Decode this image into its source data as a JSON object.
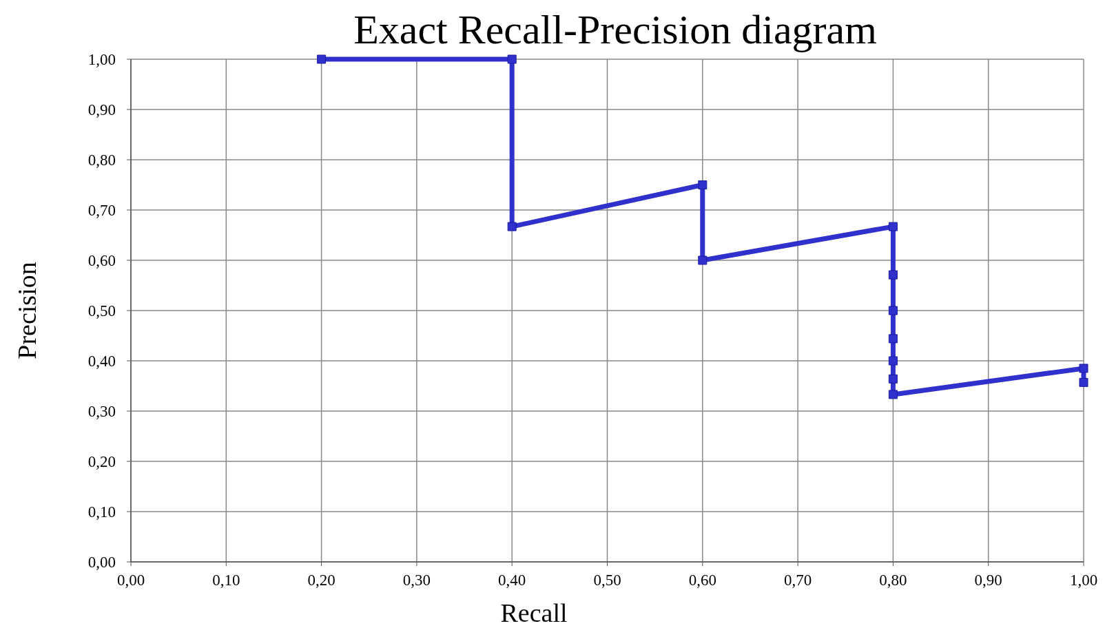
{
  "chart_data": {
    "type": "line",
    "title": "Exact Recall-Precision diagram",
    "xlabel": "Recall",
    "ylabel": "Precision",
    "x": [
      0.2,
      0.4,
      0.4,
      0.6,
      0.6,
      0.8,
      0.8,
      0.8,
      0.8,
      0.8,
      0.8,
      0.8,
      1.0,
      1.0
    ],
    "series": [
      {
        "color": "#3030cc",
        "values": [
          1.0,
          1.0,
          0.667,
          0.75,
          0.6,
          0.667,
          0.571,
          0.5,
          0.444,
          0.4,
          0.364,
          0.333,
          0.385,
          0.357
        ]
      }
    ],
    "xlim": [
      0,
      1
    ],
    "ylim": [
      0,
      1
    ],
    "xticks": [
      {
        "value": 0,
        "label": "0,00"
      },
      {
        "value": 0.1,
        "label": "0,10"
      },
      {
        "value": 0.2,
        "label": "0,20"
      },
      {
        "value": 0.3,
        "label": "0,30"
      },
      {
        "value": 0.4,
        "label": "0,40"
      },
      {
        "value": 0.5,
        "label": "0,50"
      },
      {
        "value": 0.6,
        "label": "0,60"
      },
      {
        "value": 0.7,
        "label": "0,70"
      },
      {
        "value": 0.8,
        "label": "0,80"
      },
      {
        "value": 0.9,
        "label": "0,90"
      },
      {
        "value": 1,
        "label": "1,00"
      }
    ],
    "yticks": [
      {
        "value": 0,
        "label": "0,00"
      },
      {
        "value": 0.1,
        "label": "0,10"
      },
      {
        "value": 0.2,
        "label": "0,20"
      },
      {
        "value": 0.3,
        "label": "0,30"
      },
      {
        "value": 0.4,
        "label": "0,40"
      },
      {
        "value": 0.5,
        "label": "0,50"
      },
      {
        "value": 0.6,
        "label": "0,60"
      },
      {
        "value": 0.7,
        "label": "0,70"
      },
      {
        "value": 0.8,
        "label": "0,80"
      },
      {
        "value": 0.9,
        "label": "0,90"
      },
      {
        "value": 1,
        "label": "1,00"
      }
    ],
    "grid": true,
    "marker": "square",
    "line_style": "solid"
  }
}
